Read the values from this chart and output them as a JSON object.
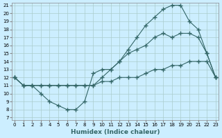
{
  "xlabel": "Humidex (Indice chaleur)",
  "ylabel": "",
  "background_color": "#cceeff",
  "line_color": "#336666",
  "xlim": [
    0,
    23
  ],
  "ylim": [
    7,
    21
  ],
  "yticks": [
    7,
    8,
    9,
    10,
    11,
    12,
    13,
    14,
    15,
    16,
    17,
    18,
    19,
    20,
    21
  ],
  "xticks": [
    0,
    1,
    2,
    3,
    4,
    5,
    6,
    7,
    8,
    9,
    10,
    11,
    12,
    13,
    14,
    15,
    16,
    17,
    18,
    19,
    20,
    21,
    22,
    23
  ],
  "line1_x": [
    0,
    1,
    2,
    3,
    4,
    5,
    6,
    7,
    8,
    9,
    10,
    11,
    12,
    13,
    14,
    15,
    16,
    17,
    18,
    19,
    20,
    21,
    22,
    23
  ],
  "line1_y": [
    12,
    11,
    11,
    10,
    9,
    8.5,
    8,
    8,
    9,
    12.5,
    13,
    13,
    14,
    15,
    15.5,
    16,
    17,
    17.5,
    17,
    17.5,
    17.5,
    17,
    15,
    12
  ],
  "line2_x": [
    0,
    1,
    2,
    3,
    4,
    5,
    6,
    7,
    8,
    9,
    10,
    11,
    12,
    13,
    14,
    15,
    16,
    17,
    18,
    19,
    20,
    21,
    22,
    23
  ],
  "line2_y": [
    12,
    11,
    11,
    11,
    11,
    11,
    11,
    11,
    11,
    11,
    11.5,
    11.5,
    12,
    12,
    12,
    12.5,
    13,
    13,
    13.5,
    13.5,
    14,
    14,
    14,
    12
  ],
  "line3_x": [
    0,
    1,
    2,
    3,
    4,
    5,
    6,
    7,
    8,
    9,
    10,
    11,
    12,
    13,
    14,
    15,
    16,
    17,
    18,
    19,
    20,
    21,
    22,
    23
  ],
  "line3_y": [
    12,
    11,
    11,
    11,
    11,
    11,
    11,
    11,
    11,
    11,
    12,
    13,
    14,
    15.5,
    17,
    18.5,
    19.5,
    20.5,
    21,
    21,
    19,
    18,
    15,
    12
  ]
}
